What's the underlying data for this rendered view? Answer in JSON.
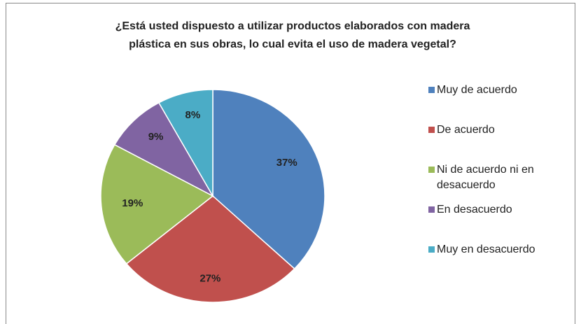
{
  "chart_data": {
    "type": "pie",
    "title": [
      "¿Está usted dispuesto a utilizar productos elaborados con madera",
      "plástica  en sus obras, lo cual evita el uso de madera vegetal?"
    ],
    "categories": [
      "Muy de acuerdo",
      "De acuerdo",
      "Ni de acuerdo ni en desacuerdo",
      "En desacuerdo",
      "Muy en desacuerdo"
    ],
    "values": [
      37,
      27,
      19,
      9,
      8
    ],
    "value_labels": [
      "37%",
      "27%",
      "19%",
      "9%",
      "8%"
    ],
    "colors": [
      "#4f81bd",
      "#c0504d",
      "#9bbb59",
      "#8064a2",
      "#4bacc6"
    ],
    "legend": "right"
  }
}
